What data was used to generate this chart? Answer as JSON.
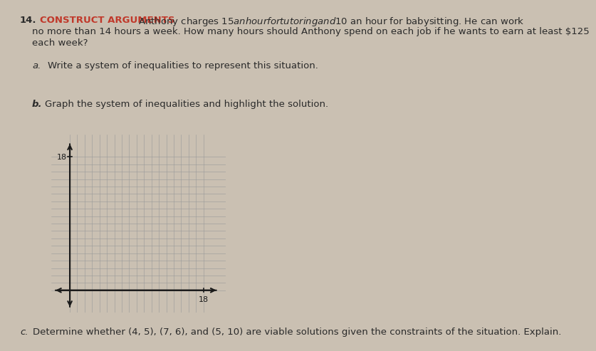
{
  "background_color": "#cac0b2",
  "title_number": "14.",
  "title_label": "CONSTRUCT ARGUMENTS",
  "title_label_color": "#c0392b",
  "title_line1": " Anthony charges $15 an hour for tutoring and $10 an hour for babysitting. He can work",
  "title_line2": "no more than 14 hours a week. How many hours should Anthony spend on each job if he wants to earn at least $125",
  "title_line3": "each week?",
  "part_a_label": "a.",
  "part_a_text": "Write a system of inequalities to represent this situation.",
  "part_b_label": "b.",
  "part_b_text": "Graph the system of inequalities and highlight the solution.",
  "part_c_label": "c.",
  "part_c_text": "Determine whether (4, 5), (7, 6), and (5, 10) are viable solutions given the constraints of the situation. Explain.",
  "graph_tick_label": "18",
  "graph_axis_color": "#1a1a1a",
  "graph_grid_color": "#999999",
  "text_color": "#2a2a2a",
  "font_size_body": 9.5,
  "graph_xlim": [
    -2.5,
    21
  ],
  "graph_ylim": [
    -3,
    21
  ],
  "graph_xtick_val": 18,
  "graph_ytick_val": 18
}
